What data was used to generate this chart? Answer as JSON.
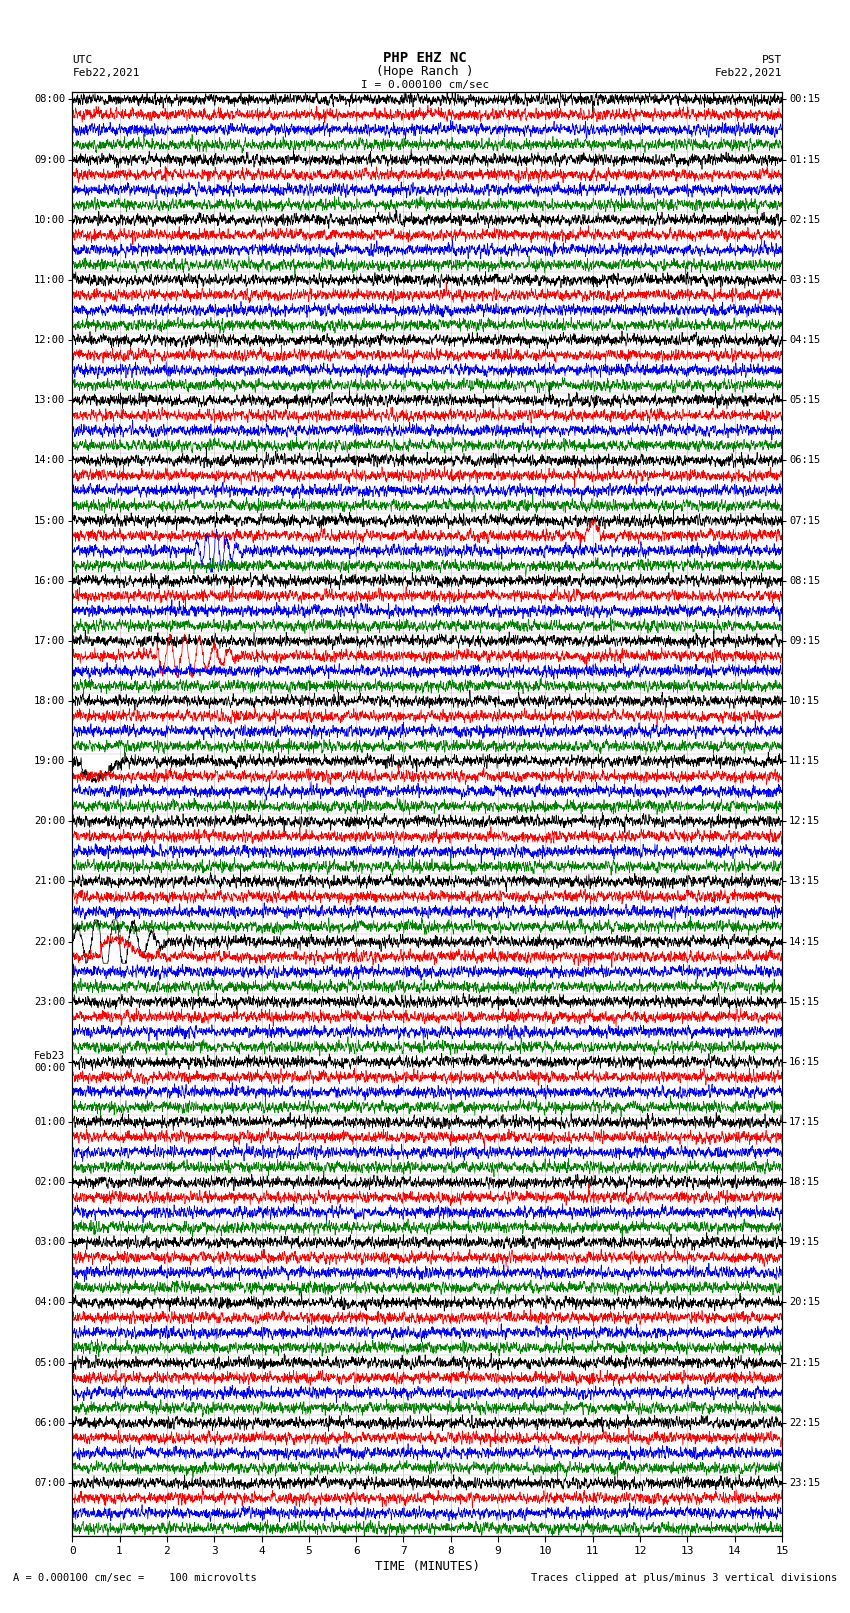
{
  "title_line1": "PHP EHZ NC",
  "title_line2": "(Hope Ranch )",
  "title_line3": "I = 0.000100 cm/sec",
  "left_header_line1": "UTC",
  "left_header_line2": "Feb22,2021",
  "right_header_line1": "PST",
  "right_header_line2": "Feb22,2021",
  "xlabel": "TIME (MINUTES)",
  "footer_left": "A = 0.000100 cm/sec =    100 microvolts",
  "footer_right": "Traces clipped at plus/minus 3 vertical divisions",
  "utc_hour_labels": [
    "08:00",
    "09:00",
    "10:00",
    "11:00",
    "12:00",
    "13:00",
    "14:00",
    "15:00",
    "16:00",
    "17:00",
    "18:00",
    "19:00",
    "20:00",
    "21:00",
    "22:00",
    "23:00",
    "Feb23\n00:00",
    "01:00",
    "02:00",
    "03:00",
    "04:00",
    "05:00",
    "06:00",
    "07:00"
  ],
  "pst_hour_labels": [
    "00:15",
    "01:15",
    "02:15",
    "03:15",
    "04:15",
    "05:15",
    "06:15",
    "07:15",
    "08:15",
    "09:15",
    "10:15",
    "11:15",
    "12:15",
    "13:15",
    "14:15",
    "15:15",
    "16:15",
    "17:15",
    "18:15",
    "19:15",
    "20:15",
    "21:15",
    "22:15",
    "23:15"
  ],
  "n_hours": 24,
  "traces_per_hour": 4,
  "colors": [
    "black",
    "red",
    "blue",
    "green"
  ],
  "bg_color": "white",
  "xmin": 0,
  "xmax": 15,
  "xticks": [
    0,
    1,
    2,
    3,
    4,
    5,
    6,
    7,
    8,
    9,
    10,
    11,
    12,
    13,
    14,
    15
  ],
  "figsize": [
    8.5,
    16.13
  ],
  "dpi": 100,
  "n_points": 3000,
  "noise_amp": 0.35,
  "row_scale": 0.48,
  "lw": 0.5,
  "minute_gridlines": [
    0,
    1,
    2,
    3,
    4,
    5,
    6,
    7,
    8,
    9,
    10,
    11,
    12,
    13,
    14,
    15
  ]
}
